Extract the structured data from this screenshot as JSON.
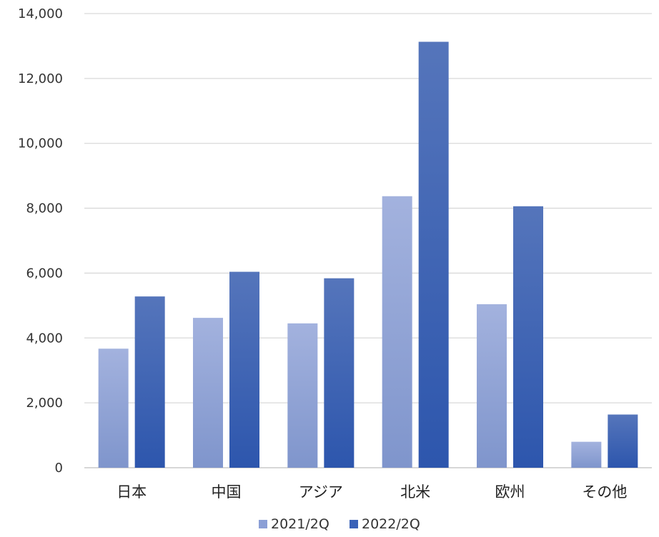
{
  "chart_data": {
    "type": "bar",
    "categories": [
      "日本",
      "中国",
      "アジア",
      "北米",
      "欧州",
      "その他"
    ],
    "series": [
      {
        "name": "2021/2Q",
        "values": [
          3670,
          4620,
          4450,
          8370,
          5040,
          800
        ],
        "color": "#8b9fd6"
      },
      {
        "name": "2022/2Q",
        "values": [
          5280,
          6040,
          5840,
          13130,
          8060,
          1640
        ],
        "color": "#3a62b8"
      }
    ],
    "y_ticks": [
      "0",
      "2,000",
      "4,000",
      "6,000",
      "8,000",
      "10,000",
      "12,000",
      "14,000"
    ],
    "ylim": [
      0,
      14000
    ],
    "y_step": 2000,
    "grid": true,
    "legend": "bottom-center"
  }
}
